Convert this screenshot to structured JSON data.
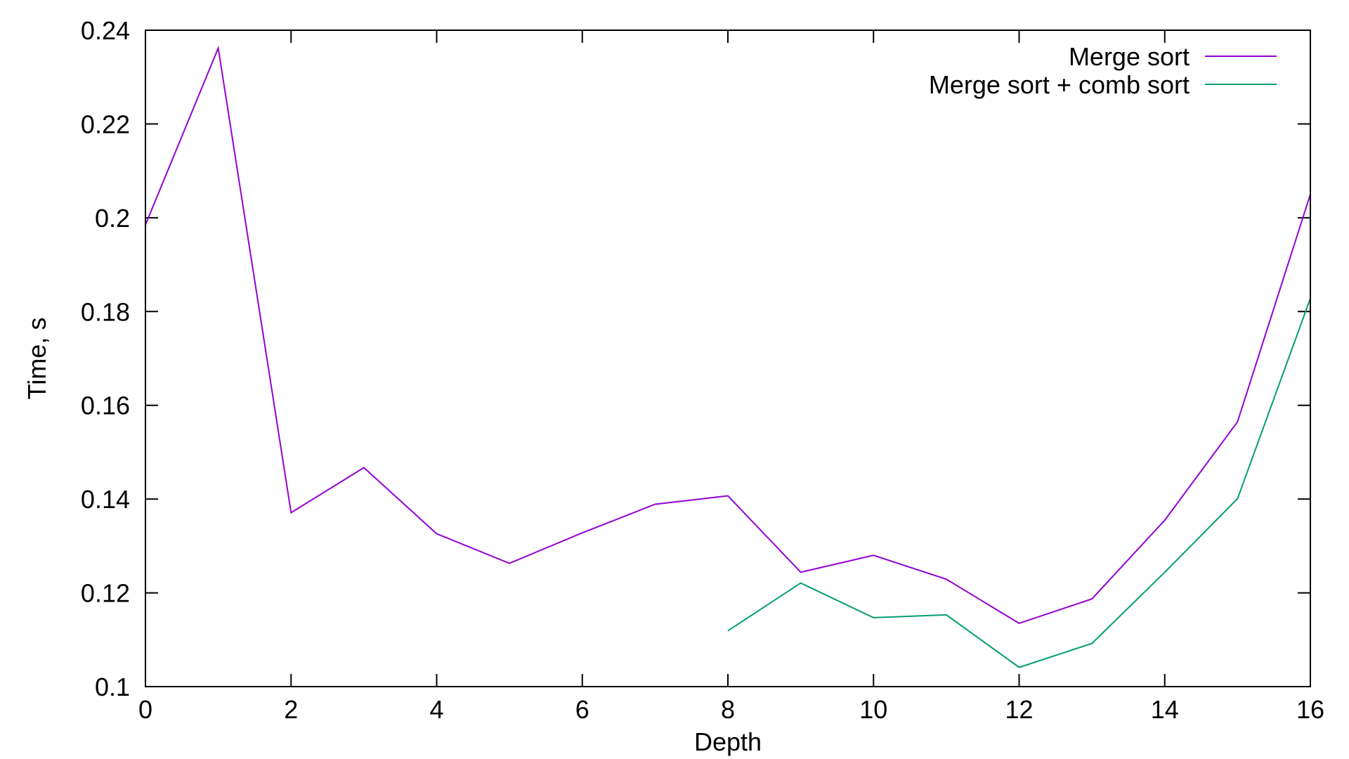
{
  "chart_data": {
    "type": "line",
    "title": "",
    "xlabel": "Depth",
    "ylabel": "Time, s",
    "xlim": [
      0,
      16
    ],
    "ylim": [
      0.1,
      0.24
    ],
    "x_ticks": [
      "0",
      "2",
      "4",
      "6",
      "8",
      "10",
      "12",
      "14",
      "16"
    ],
    "y_ticks": [
      "0.1",
      "0.12",
      "0.14",
      "0.16",
      "0.18",
      "0.2",
      "0.22",
      "0.24"
    ],
    "grid": false,
    "legend_position": "top-right",
    "series": [
      {
        "name": "Merge sort",
        "color": "#9400d3",
        "x": [
          0,
          1,
          2,
          3,
          4,
          5,
          6,
          7,
          8,
          9,
          10,
          11,
          12,
          13,
          14,
          15,
          16
        ],
        "y": [
          0.1985,
          0.2362,
          0.1371,
          0.1467,
          0.1326,
          0.1263,
          0.1328,
          0.1389,
          0.1407,
          0.1244,
          0.128,
          0.1229,
          0.1135,
          0.1187,
          0.1355,
          0.1565,
          0.205
        ]
      },
      {
        "name": "Merge sort + comb sort",
        "color": "#009e73",
        "x": [
          8,
          9,
          10,
          11,
          12,
          13,
          14,
          15,
          16
        ],
        "y": [
          0.1119,
          0.1221,
          0.1147,
          0.1153,
          0.1041,
          0.1092,
          0.1244,
          0.1401,
          0.1828
        ]
      }
    ]
  }
}
